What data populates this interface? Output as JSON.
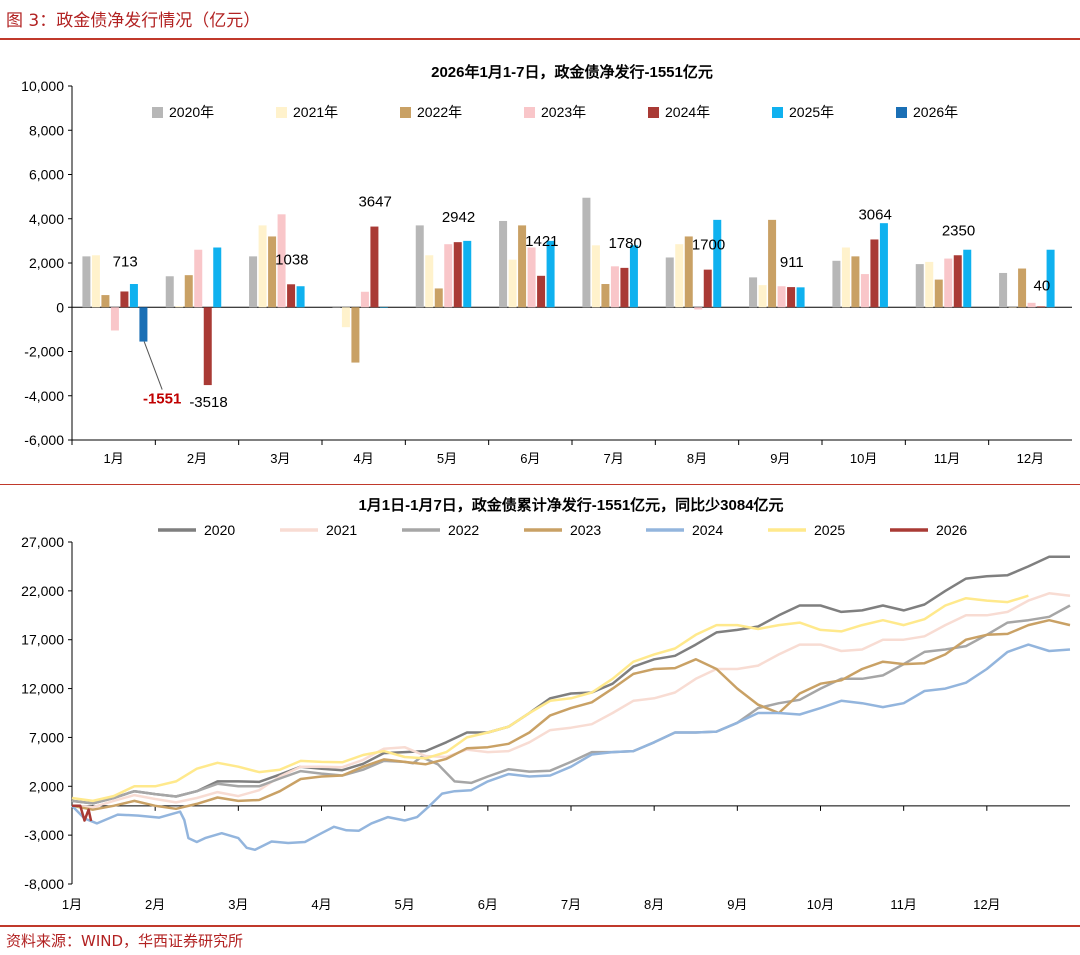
{
  "figure_title": "图 3：政金债净发行情况（亿元）",
  "source": "资料来源：WIND，华西证券研究所",
  "chart_data": [
    {
      "type": "bar",
      "title": "2026年1月1-7日，政金债净发行-1551亿元",
      "categories": [
        "1月",
        "2月",
        "3月",
        "4月",
        "5月",
        "6月",
        "7月",
        "8月",
        "9月",
        "10月",
        "11月",
        "12月"
      ],
      "ylim": [
        -6000,
        10000
      ],
      "yticks": [
        -6000,
        -4000,
        -2000,
        0,
        2000,
        4000,
        6000,
        8000,
        10000
      ],
      "ytick_labels": [
        "-6,000",
        "-4,000",
        "-2,000",
        "0",
        "2,000",
        "4,000",
        "6,000",
        "8,000",
        "10,000"
      ],
      "series": [
        {
          "name": "2020年",
          "color": "#b7b7b7",
          "values": [
            2300,
            1400,
            2300,
            0,
            3700,
            3900,
            4950,
            2250,
            1350,
            2100,
            1950,
            1550
          ]
        },
        {
          "name": "2021年",
          "color": "#fff2cc",
          "values": [
            2350,
            50,
            3700,
            -900,
            2350,
            2150,
            2800,
            2850,
            1000,
            2700,
            2050,
            0
          ]
        },
        {
          "name": "2022年",
          "color": "#c9a165",
          "values": [
            550,
            1450,
            3200,
            -2500,
            850,
            3700,
            1050,
            3200,
            3950,
            2300,
            1250,
            1750
          ]
        },
        {
          "name": "2023年",
          "color": "#f9c6c9",
          "values": [
            -1050,
            2600,
            4200,
            700,
            2850,
            2700,
            1850,
            -100,
            950,
            1500,
            2200,
            200
          ]
        },
        {
          "name": "2024年",
          "color": "#a93a35",
          "values": [
            713,
            -3518,
            1038,
            3647,
            2942,
            1421,
            1780,
            1700,
            911,
            3064,
            2350,
            40
          ]
        },
        {
          "name": "2025年",
          "color": "#0fb1ef",
          "values": [
            1050,
            2700,
            950,
            0,
            3000,
            3000,
            2800,
            3950,
            900,
            3800,
            2600,
            2600
          ]
        },
        {
          "name": "2026年",
          "color": "#1a6fb5",
          "values": [
            -1551,
            null,
            null,
            null,
            null,
            null,
            null,
            null,
            null,
            null,
            null,
            null
          ]
        }
      ],
      "data_labels": [
        {
          "series": "2024年",
          "category": "1月",
          "text": "713"
        },
        {
          "series": "2024年",
          "category": "2月",
          "text": "-3518"
        },
        {
          "series": "2024年",
          "category": "3月",
          "text": "1038"
        },
        {
          "series": "2024年",
          "category": "4月",
          "text": "3647"
        },
        {
          "series": "2024年",
          "category": "5月",
          "text": "2942"
        },
        {
          "series": "2024年",
          "category": "6月",
          "text": "1421"
        },
        {
          "series": "2024年",
          "category": "7月",
          "text": "1780"
        },
        {
          "series": "2024年",
          "category": "8月",
          "text": "1700"
        },
        {
          "series": "2024年",
          "category": "9月",
          "text": "911"
        },
        {
          "series": "2024年",
          "category": "10月",
          "text": "3064"
        },
        {
          "series": "2024年",
          "category": "11月",
          "text": "2350"
        },
        {
          "series": "2024年",
          "category": "12月",
          "text": "40"
        },
        {
          "series": "2026年",
          "category": "1月",
          "text": "-1551",
          "color": "#c00000",
          "bold": true
        }
      ],
      "legend_position": "top"
    },
    {
      "type": "line",
      "title": "1月1日-1月7日，政金债累计净发行-1551亿元，同比少3084亿元",
      "x_unit": "month",
      "x_range": [
        0,
        12
      ],
      "xtick_labels": [
        "1月",
        "2月",
        "3月",
        "4月",
        "5月",
        "6月",
        "7月",
        "8月",
        "9月",
        "10月",
        "11月",
        "12月"
      ],
      "ylim": [
        -8000,
        27000
      ],
      "yticks": [
        -8000,
        -3000,
        2000,
        7000,
        12000,
        17000,
        22000,
        27000
      ],
      "ytick_labels": [
        "-8,000",
        "-3,000",
        "2,000",
        "7,000",
        "12,000",
        "17,000",
        "22,000",
        "27,000"
      ],
      "legend_position": "top",
      "series": [
        {
          "name": "2020",
          "color": "#7f7f7f",
          "x": [
            0,
            0.5,
            1,
            1.5,
            2,
            2.5,
            3,
            3.5,
            4,
            4.5,
            5,
            5.5,
            6,
            6.5,
            7,
            7.5,
            8,
            8.5,
            9,
            9.5,
            10,
            10.5,
            11,
            11.5,
            12
          ],
          "y": [
            500,
            800,
            1200,
            1500,
            2500,
            3200,
            3800,
            4300,
            5500,
            6500,
            7500,
            9500,
            11500,
            12500,
            15000,
            16500,
            18000,
            19500,
            20500,
            20000,
            20000,
            22000,
            23500,
            24500,
            25500
          ]
        },
        {
          "name": "2021",
          "color": "#f8dcd3",
          "x": [
            0,
            0.5,
            1,
            1.5,
            2,
            2.5,
            3,
            3.5,
            4,
            4.5,
            5,
            5.5,
            6,
            6.5,
            7,
            7.5,
            8,
            8.5,
            9,
            9.5,
            10,
            10.5,
            11,
            11.5,
            12
          ],
          "y": [
            0,
            500,
            700,
            800,
            1000,
            3000,
            4000,
            4700,
            6000,
            5000,
            5500,
            6500,
            8000,
            9500,
            11000,
            13000,
            14000,
            15500,
            16500,
            16000,
            17000,
            18500,
            19500,
            21000,
            21500
          ]
        },
        {
          "name": "2022",
          "color": "#a6a6a6",
          "x": [
            0,
            0.5,
            1,
            1.5,
            2,
            2.5,
            3,
            3.5,
            4,
            4.2,
            4.6,
            5,
            5.5,
            6,
            6.5,
            7,
            7.5,
            8,
            8.5,
            9,
            9.5,
            10,
            10.5,
            11,
            11.5,
            12
          ],
          "y": [
            500,
            800,
            1200,
            1500,
            2000,
            2800,
            3300,
            3700,
            4500,
            5000,
            2500,
            3000,
            3500,
            4500,
            5500,
            6500,
            7500,
            8500,
            10500,
            12000,
            13000,
            14500,
            16000,
            17500,
            19000,
            20500
          ]
        },
        {
          "name": "2023",
          "color": "#c9a165",
          "x": [
            0,
            0.5,
            1,
            1.5,
            2,
            2.5,
            3,
            3.5,
            4,
            4.5,
            5,
            5.5,
            6,
            6.5,
            7,
            7.5,
            8,
            8.5,
            9,
            9.5,
            10,
            10.5,
            11,
            11.5,
            12
          ],
          "y": [
            0,
            0,
            0,
            200,
            500,
            1500,
            3000,
            4000,
            4500,
            4800,
            6000,
            7500,
            10000,
            12000,
            14000,
            15000,
            12000,
            9500,
            12500,
            14000,
            14500,
            15500,
            17500,
            18500,
            18500
          ]
        },
        {
          "name": "2024",
          "color": "#93b5dd",
          "x": [
            0,
            0.3,
            0.8,
            1.3,
            1.4,
            1.6,
            2,
            2.2,
            2.6,
            3,
            3.3,
            3.6,
            4,
            4.3,
            4.6,
            5,
            5.5,
            6,
            6.5,
            7,
            7.5,
            8,
            8.5,
            9,
            9.5,
            10,
            10.5,
            11,
            11.5,
            12
          ],
          "y": [
            0,
            -1800,
            -1000,
            -600,
            -3300,
            -3300,
            -3300,
            -4500,
            -3800,
            -2800,
            -2500,
            -1800,
            -1500,
            0,
            1500,
            2500,
            3000,
            4000,
            5500,
            6500,
            7500,
            8500,
            9500,
            10000,
            10500,
            10500,
            12000,
            14000,
            16500,
            16000
          ]
        },
        {
          "name": "2025",
          "color": "#ffe98c",
          "x": [
            0,
            0.5,
            1,
            1.5,
            2,
            2.5,
            3,
            3.5,
            4,
            4.5,
            5,
            5.5,
            6,
            6.5,
            7,
            7.5,
            8,
            8.5,
            9,
            9.5,
            10,
            10.5,
            11,
            11.5
          ],
          "y": [
            800,
            1000,
            2000,
            3800,
            4000,
            3700,
            4500,
            5200,
            5000,
            5500,
            7500,
            9500,
            11000,
            13000,
            15500,
            17500,
            18500,
            18500,
            18000,
            18500,
            18500,
            20500,
            21000,
            21500
          ]
        },
        {
          "name": "2026",
          "color": "#a93a35",
          "x": [
            0,
            0.1,
            0.15,
            0.2,
            0.23
          ],
          "y": [
            0,
            0,
            -1500,
            -400,
            -1551
          ]
        }
      ]
    }
  ]
}
